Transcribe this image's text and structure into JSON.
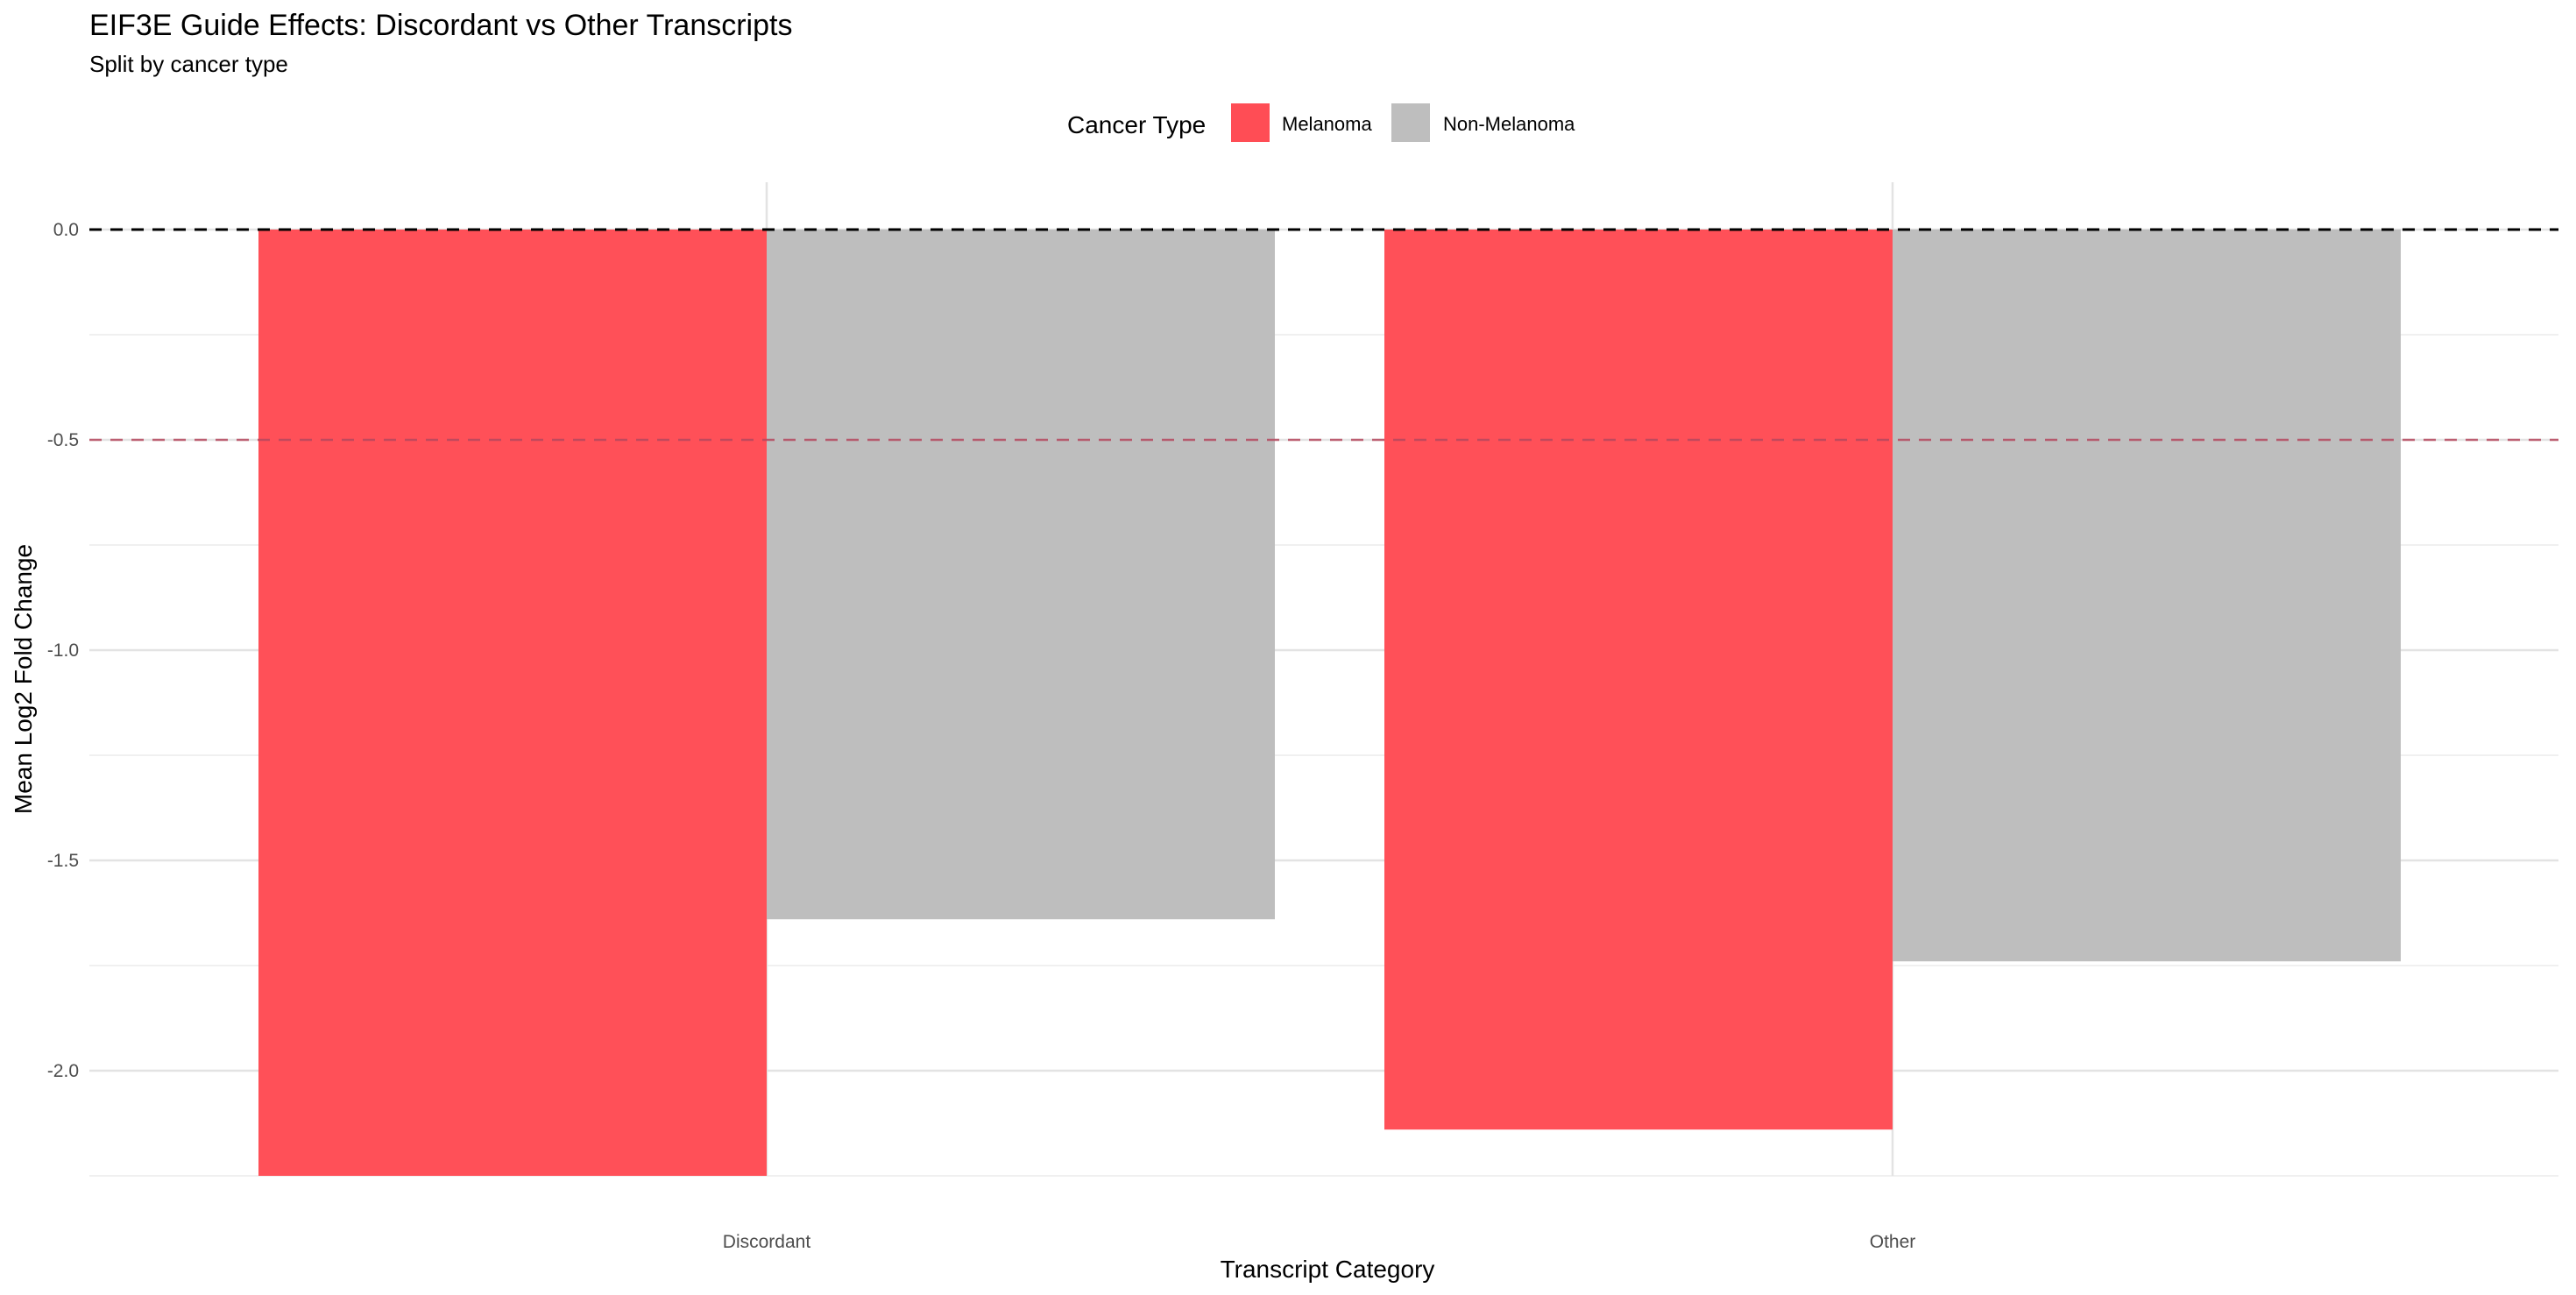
{
  "chart_data": {
    "type": "bar",
    "title": "EIF3E Guide Effects: Discordant vs Other Transcripts",
    "subtitle": "Split by cancer type",
    "xlabel": "Transcript Category",
    "ylabel": "Mean Log2 Fold Change",
    "categories": [
      "Discordant",
      "Other"
    ],
    "series": [
      {
        "name": "Melanoma",
        "values": [
          -2.25,
          -2.14
        ],
        "color": "#ff4d55"
      },
      {
        "name": "Non-Melanoma",
        "values": [
          -1.64,
          -1.74
        ],
        "color": "#bebebe"
      }
    ],
    "ylim": [
      -2.25,
      0.0
    ],
    "yticks": [
      0.0,
      -0.5,
      -1.0,
      -1.5,
      -2.0
    ],
    "ytick_labels": [
      "0.0",
      "-0.5",
      "-1.0",
      "-1.5",
      "-2.0"
    ],
    "reference_lines": [
      {
        "y": 0.0,
        "color": "#000000",
        "style": "dashed"
      },
      {
        "y": -0.5,
        "color": "#b5485e",
        "style": "dashed"
      }
    ],
    "legend": {
      "title": "Cancer Type",
      "position": "top"
    },
    "grid": true
  }
}
